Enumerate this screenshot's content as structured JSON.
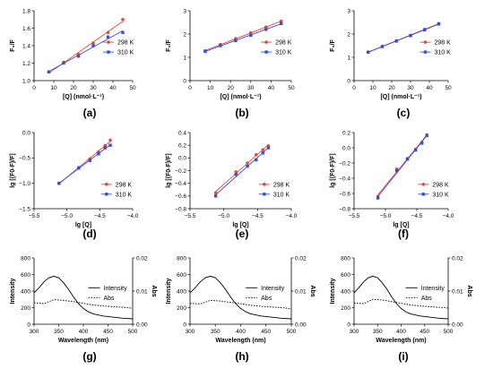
{
  "chart_data": [
    {
      "panel_label": "(a)",
      "type": "scatter",
      "xlabel": "[Q] (nmol·L⁻¹)",
      "ylabel": "F₀/F",
      "xlim": [
        0,
        50
      ],
      "ylim": [
        1.0,
        1.8
      ],
      "xticks": [
        "0",
        "10",
        "20",
        "30",
        "40",
        "50"
      ],
      "yticks": [
        "1.0",
        "1.2",
        "1.4",
        "1.6",
        "1.8"
      ],
      "legend_position": "right",
      "series": [
        {
          "name": "298 K",
          "color": "#e8453c",
          "marker": "circle",
          "x": [
            7.5,
            15,
            22.5,
            30,
            37.5,
            45
          ],
          "y": [
            1.1,
            1.21,
            1.3,
            1.43,
            1.55,
            1.7
          ]
        },
        {
          "name": "310 K",
          "color": "#2f4fe0",
          "marker": "square",
          "x": [
            7.5,
            15,
            22.5,
            30,
            37.5,
            45
          ],
          "y": [
            1.1,
            1.2,
            1.28,
            1.4,
            1.5,
            1.55
          ]
        }
      ]
    },
    {
      "panel_label": "(b)",
      "type": "scatter",
      "xlabel": "[Q] (nmol·L⁻¹)",
      "ylabel": "F₀/F",
      "xlim": [
        0,
        50
      ],
      "ylim": [
        0,
        3
      ],
      "xticks": [
        "0",
        "10",
        "20",
        "30",
        "40",
        "50"
      ],
      "yticks": [
        "0",
        "1",
        "2",
        "3"
      ],
      "legend_position": "right",
      "series": [
        {
          "name": "298 K",
          "color": "#e8453c",
          "marker": "circle",
          "x": [
            7.5,
            15,
            22.5,
            30,
            37.5,
            45
          ],
          "y": [
            1.28,
            1.55,
            1.8,
            2.05,
            2.3,
            2.55
          ]
        },
        {
          "name": "310 K",
          "color": "#2f4fe0",
          "marker": "square",
          "x": [
            7.5,
            15,
            22.5,
            30,
            37.5,
            45
          ],
          "y": [
            1.25,
            1.5,
            1.72,
            1.95,
            2.2,
            2.45
          ]
        }
      ]
    },
    {
      "panel_label": "(c)",
      "type": "scatter",
      "xlabel": "[Q] (nmol·L⁻¹)",
      "ylabel": "F₀/F",
      "xlim": [
        0,
        50
      ],
      "ylim": [
        0,
        3
      ],
      "xticks": [
        "0",
        "10",
        "20",
        "30",
        "40",
        "50"
      ],
      "yticks": [
        "0",
        "1",
        "2",
        "3"
      ],
      "legend_position": "right",
      "series": [
        {
          "name": "298 K",
          "color": "#e8453c",
          "marker": "circle",
          "x": [
            7.5,
            15,
            22.5,
            30,
            37.5,
            45
          ],
          "y": [
            1.23,
            1.47,
            1.7,
            1.95,
            2.2,
            2.45
          ]
        },
        {
          "name": "310 K",
          "color": "#2f4fe0",
          "marker": "square",
          "x": [
            7.5,
            15,
            22.5,
            30,
            37.5,
            45
          ],
          "y": [
            1.22,
            1.46,
            1.7,
            1.93,
            2.18,
            2.43
          ]
        }
      ]
    },
    {
      "panel_label": "(d)",
      "type": "scatter",
      "xlabel": "lg [Q]",
      "ylabel": "lg [(F0-F)/F]",
      "xlim": [
        -5.5,
        -4.0
      ],
      "ylim": [
        -1.5,
        0.0
      ],
      "xticks": [
        "−5.5",
        "−5.0",
        "−4.5",
        "−4.0"
      ],
      "yticks": [
        "−1.5",
        "−1.0",
        "−0.5",
        "0.0"
      ],
      "legend_position": "bottom-right",
      "series": [
        {
          "name": "298 K",
          "color": "#e8453c",
          "marker": "circle",
          "x": [
            -5.12,
            -4.82,
            -4.65,
            -4.52,
            -4.42,
            -4.34
          ],
          "y": [
            -1.0,
            -0.69,
            -0.52,
            -0.38,
            -0.26,
            -0.15
          ]
        },
        {
          "name": "310 K",
          "color": "#2f4fe0",
          "marker": "square",
          "x": [
            -5.12,
            -4.82,
            -4.65,
            -4.52,
            -4.42,
            -4.34
          ],
          "y": [
            -1.0,
            -0.7,
            -0.55,
            -0.42,
            -0.3,
            -0.25
          ]
        }
      ]
    },
    {
      "panel_label": "(e)",
      "type": "scatter",
      "xlabel": "lg [Q]",
      "ylabel": "lg [(F0-F)/F]",
      "xlim": [
        -5.5,
        -4.0
      ],
      "ylim": [
        -0.8,
        0.4
      ],
      "xticks": [
        "−5.5",
        "−5.0",
        "−4.5",
        "−4.0"
      ],
      "yticks": [
        "−0.8",
        "−0.6",
        "−0.4",
        "−0.2",
        "0.0",
        "0.2",
        "0.4"
      ],
      "legend_position": "bottom-right",
      "series": [
        {
          "name": "298 K",
          "color": "#e8453c",
          "marker": "circle",
          "x": [
            -5.12,
            -4.82,
            -4.65,
            -4.52,
            -4.42,
            -4.34
          ],
          "y": [
            -0.55,
            -0.22,
            -0.08,
            0.05,
            0.13,
            0.19
          ]
        },
        {
          "name": "310 K",
          "color": "#2f4fe0",
          "marker": "square",
          "x": [
            -5.12,
            -4.82,
            -4.65,
            -4.52,
            -4.42,
            -4.34
          ],
          "y": [
            -0.6,
            -0.26,
            -0.13,
            -0.03,
            0.08,
            0.16
          ]
        }
      ]
    },
    {
      "panel_label": "(f)",
      "type": "scatter",
      "xlabel": "lg [Q]",
      "ylabel": "lg [(F0-F)/F]",
      "xlim": [
        -5.5,
        -4.0
      ],
      "ylim": [
        -0.8,
        0.2
      ],
      "xticks": [
        "−5.5",
        "−5.0",
        "−4.5",
        "−4.0"
      ],
      "yticks": [
        "−0.8",
        "−0.6",
        "−0.4",
        "−0.2",
        "0.0",
        "0.2"
      ],
      "legend_position": "bottom-right",
      "series": [
        {
          "name": "298 K",
          "color": "#e8453c",
          "marker": "circle",
          "x": [
            -5.12,
            -4.82,
            -4.65,
            -4.52,
            -4.42,
            -4.34
          ],
          "y": [
            -0.64,
            -0.28,
            -0.14,
            -0.02,
            0.07,
            0.17
          ]
        },
        {
          "name": "310 K",
          "color": "#2f4fe0",
          "marker": "square",
          "x": [
            -5.12,
            -4.82,
            -4.65,
            -4.52,
            -4.42,
            -4.34
          ],
          "y": [
            -0.66,
            -0.3,
            -0.15,
            -0.03,
            0.06,
            0.16
          ]
        }
      ]
    },
    {
      "panel_label": "(g)",
      "type": "line",
      "xlabel": "Wavelength (nm)",
      "ylabel": "Intensity",
      "y2label": "Abs",
      "xlim": [
        300,
        500
      ],
      "ylim": [
        0,
        800
      ],
      "y2lim": [
        0,
        0.02
      ],
      "xticks": [
        "300",
        "350",
        "400",
        "450",
        "500"
      ],
      "yticks": [
        "0",
        "200",
        "400",
        "600",
        "800"
      ],
      "y2ticks": [
        "0.00",
        "0.01",
        "0.02"
      ],
      "legend_position": "right",
      "series": [
        {
          "name": "Intensity",
          "style": "solid",
          "axis": "left",
          "x": [
            300,
            310,
            320,
            330,
            340,
            350,
            360,
            370,
            380,
            390,
            400,
            410,
            420,
            440,
            460,
            480,
            500
          ],
          "y": [
            380,
            440,
            510,
            560,
            580,
            560,
            500,
            420,
            330,
            250,
            190,
            150,
            125,
            100,
            85,
            72,
            65
          ]
        },
        {
          "name": "Abs",
          "style": "dotted",
          "axis": "right",
          "x": [
            300,
            320,
            340,
            360,
            380,
            400,
            420,
            440,
            460,
            480,
            500
          ],
          "y": [
            0.0065,
            0.0062,
            0.0074,
            0.0072,
            0.0068,
            0.0063,
            0.0058,
            0.0055,
            0.0053,
            0.0051,
            0.0048
          ]
        }
      ]
    },
    {
      "panel_label": "(h)",
      "type": "line",
      "xlabel": "Wavelength (nm)",
      "ylabel": "Intensity",
      "y2label": "Abs",
      "xlim": [
        300,
        500
      ],
      "ylim": [
        0,
        800
      ],
      "y2lim": [
        0,
        0.02
      ],
      "xticks": [
        "300",
        "350",
        "400",
        "450",
        "500"
      ],
      "yticks": [
        "0",
        "200",
        "400",
        "600",
        "800"
      ],
      "y2ticks": [
        "0.00",
        "0.01",
        "0.02"
      ],
      "legend_position": "right",
      "series": [
        {
          "name": "Intensity",
          "style": "solid",
          "axis": "left",
          "x": [
            300,
            310,
            320,
            330,
            340,
            350,
            360,
            370,
            380,
            390,
            400,
            410,
            420,
            440,
            460,
            480,
            500
          ],
          "y": [
            380,
            440,
            510,
            560,
            580,
            560,
            500,
            420,
            330,
            250,
            190,
            150,
            125,
            100,
            85,
            72,
            65
          ]
        },
        {
          "name": "Abs",
          "style": "dotted",
          "axis": "right",
          "x": [
            300,
            320,
            340,
            360,
            380,
            400,
            420,
            440,
            460,
            480,
            500
          ],
          "y": [
            0.0063,
            0.0061,
            0.0072,
            0.007,
            0.0066,
            0.0062,
            0.0057,
            0.0054,
            0.0052,
            0.005,
            0.0047
          ]
        }
      ]
    },
    {
      "panel_label": "(i)",
      "type": "line",
      "xlabel": "Wavelength (nm)",
      "ylabel": "Intensity",
      "y2label": "Abs",
      "xlim": [
        300,
        500
      ],
      "ylim": [
        0,
        800
      ],
      "y2lim": [
        0,
        0.02
      ],
      "xticks": [
        "300",
        "350",
        "400",
        "450",
        "500"
      ],
      "yticks": [
        "0",
        "200",
        "400",
        "600",
        "800"
      ],
      "y2ticks": [
        "0.00",
        "0.01",
        "0.02"
      ],
      "legend_position": "right",
      "series": [
        {
          "name": "Intensity",
          "style": "solid",
          "axis": "left",
          "x": [
            300,
            310,
            320,
            330,
            340,
            350,
            360,
            370,
            380,
            390,
            400,
            410,
            420,
            440,
            460,
            480,
            500
          ],
          "y": [
            380,
            440,
            510,
            560,
            580,
            560,
            500,
            420,
            330,
            250,
            190,
            150,
            125,
            100,
            85,
            72,
            65
          ]
        },
        {
          "name": "Abs",
          "style": "dotted",
          "axis": "right",
          "x": [
            300,
            320,
            340,
            360,
            380,
            400,
            420,
            440,
            460,
            480,
            500
          ],
          "y": [
            0.0064,
            0.0062,
            0.0075,
            0.0073,
            0.0068,
            0.0063,
            0.0058,
            0.0055,
            0.0053,
            0.0051,
            0.0049
          ]
        }
      ]
    }
  ]
}
